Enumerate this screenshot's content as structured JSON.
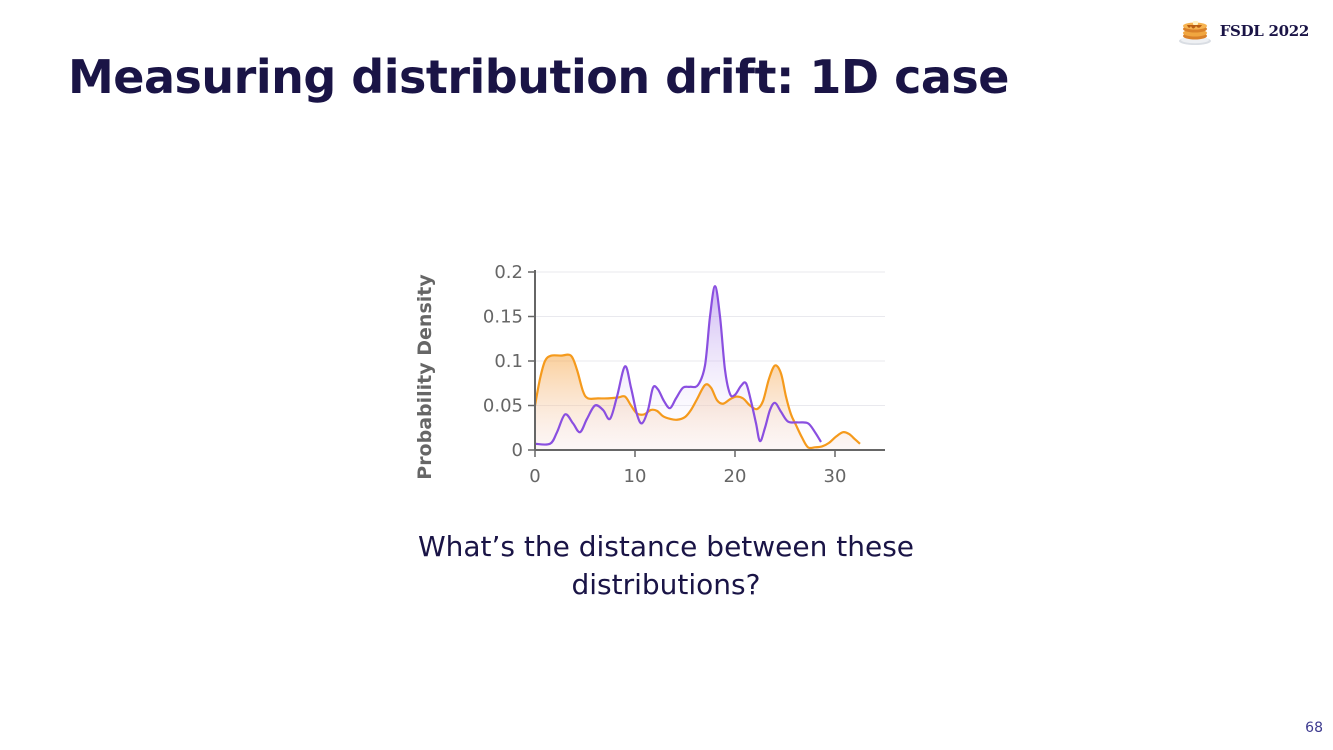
{
  "slide": {
    "title": "Measuring distribution drift: 1D case",
    "brand": "FSDL 2022",
    "question": "What’s the distance between these distributions?",
    "page_number": "68"
  },
  "icons": {
    "brand_logo": "pancakes-icon"
  },
  "colors": {
    "title": "#1a1446",
    "series_purple": "#8a4fe0",
    "series_orange": "#f59a1c",
    "axis_text": "#666666"
  },
  "chart_data": {
    "type": "area",
    "title": "",
    "xlabel": "",
    "ylabel": "Probability Density",
    "xlim": [
      0,
      35
    ],
    "ylim": [
      0,
      0.2
    ],
    "xticks": [
      "0",
      "10",
      "20",
      "30"
    ],
    "yticks": [
      "0",
      "0.05",
      "0.1",
      "0.15",
      "0.2"
    ],
    "grid": "horizontal",
    "legend": "none",
    "series": [
      {
        "color": "#8a4fe0",
        "points": [
          [
            0,
            0.007
          ],
          [
            1.5,
            0.007
          ],
          [
            2.2,
            0.02
          ],
          [
            3,
            0.04
          ],
          [
            3.8,
            0.03
          ],
          [
            4.5,
            0.02
          ],
          [
            5.2,
            0.035
          ],
          [
            6,
            0.05
          ],
          [
            6.8,
            0.045
          ],
          [
            7.5,
            0.035
          ],
          [
            8.2,
            0.06
          ],
          [
            9,
            0.094
          ],
          [
            9.6,
            0.07
          ],
          [
            10.2,
            0.04
          ],
          [
            10.7,
            0.03
          ],
          [
            11.3,
            0.045
          ],
          [
            11.8,
            0.07
          ],
          [
            12.3,
            0.068
          ],
          [
            12.9,
            0.055
          ],
          [
            13.5,
            0.047
          ],
          [
            14.1,
            0.058
          ],
          [
            14.8,
            0.07
          ],
          [
            15.5,
            0.071
          ],
          [
            16.3,
            0.073
          ],
          [
            17,
            0.095
          ],
          [
            17.5,
            0.15
          ],
          [
            18,
            0.184
          ],
          [
            18.5,
            0.15
          ],
          [
            19,
            0.09
          ],
          [
            19.5,
            0.063
          ],
          [
            20,
            0.062
          ],
          [
            20.6,
            0.072
          ],
          [
            21.1,
            0.075
          ],
          [
            21.6,
            0.055
          ],
          [
            22.1,
            0.03
          ],
          [
            22.5,
            0.01
          ],
          [
            23,
            0.025
          ],
          [
            23.5,
            0.045
          ],
          [
            24,
            0.053
          ],
          [
            24.6,
            0.043
          ],
          [
            25.3,
            0.032
          ],
          [
            26.3,
            0.031
          ],
          [
            27.3,
            0.03
          ],
          [
            28,
            0.02
          ],
          [
            28.6,
            0.009
          ]
        ]
      },
      {
        "color": "#f59a1c",
        "points": [
          [
            0,
            0.05
          ],
          [
            0.5,
            0.08
          ],
          [
            1,
            0.1
          ],
          [
            1.6,
            0.106
          ],
          [
            2.6,
            0.106
          ],
          [
            3.6,
            0.106
          ],
          [
            4.2,
            0.09
          ],
          [
            4.8,
            0.066
          ],
          [
            5.3,
            0.058
          ],
          [
            6.3,
            0.058
          ],
          [
            7.3,
            0.058
          ],
          [
            8.3,
            0.059
          ],
          [
            9,
            0.06
          ],
          [
            9.6,
            0.05
          ],
          [
            10.2,
            0.041
          ],
          [
            10.9,
            0.04
          ],
          [
            11.6,
            0.045
          ],
          [
            12.2,
            0.044
          ],
          [
            12.8,
            0.038
          ],
          [
            13.5,
            0.035
          ],
          [
            14.2,
            0.034
          ],
          [
            15,
            0.037
          ],
          [
            15.6,
            0.045
          ],
          [
            16.2,
            0.057
          ],
          [
            17,
            0.073
          ],
          [
            17.6,
            0.07
          ],
          [
            18.2,
            0.056
          ],
          [
            18.8,
            0.052
          ],
          [
            19.5,
            0.057
          ],
          [
            20.1,
            0.06
          ],
          [
            20.8,
            0.058
          ],
          [
            21.5,
            0.05
          ],
          [
            22.2,
            0.046
          ],
          [
            22.8,
            0.055
          ],
          [
            23.4,
            0.08
          ],
          [
            24,
            0.095
          ],
          [
            24.6,
            0.086
          ],
          [
            25.1,
            0.06
          ],
          [
            25.6,
            0.04
          ],
          [
            26.1,
            0.028
          ],
          [
            26.7,
            0.014
          ],
          [
            27.3,
            0.003
          ],
          [
            28,
            0.003
          ],
          [
            28.7,
            0.004
          ],
          [
            29.4,
            0.008
          ],
          [
            30.1,
            0.015
          ],
          [
            30.8,
            0.02
          ],
          [
            31.4,
            0.018
          ],
          [
            32,
            0.012
          ],
          [
            32.5,
            0.007
          ]
        ]
      }
    ]
  }
}
